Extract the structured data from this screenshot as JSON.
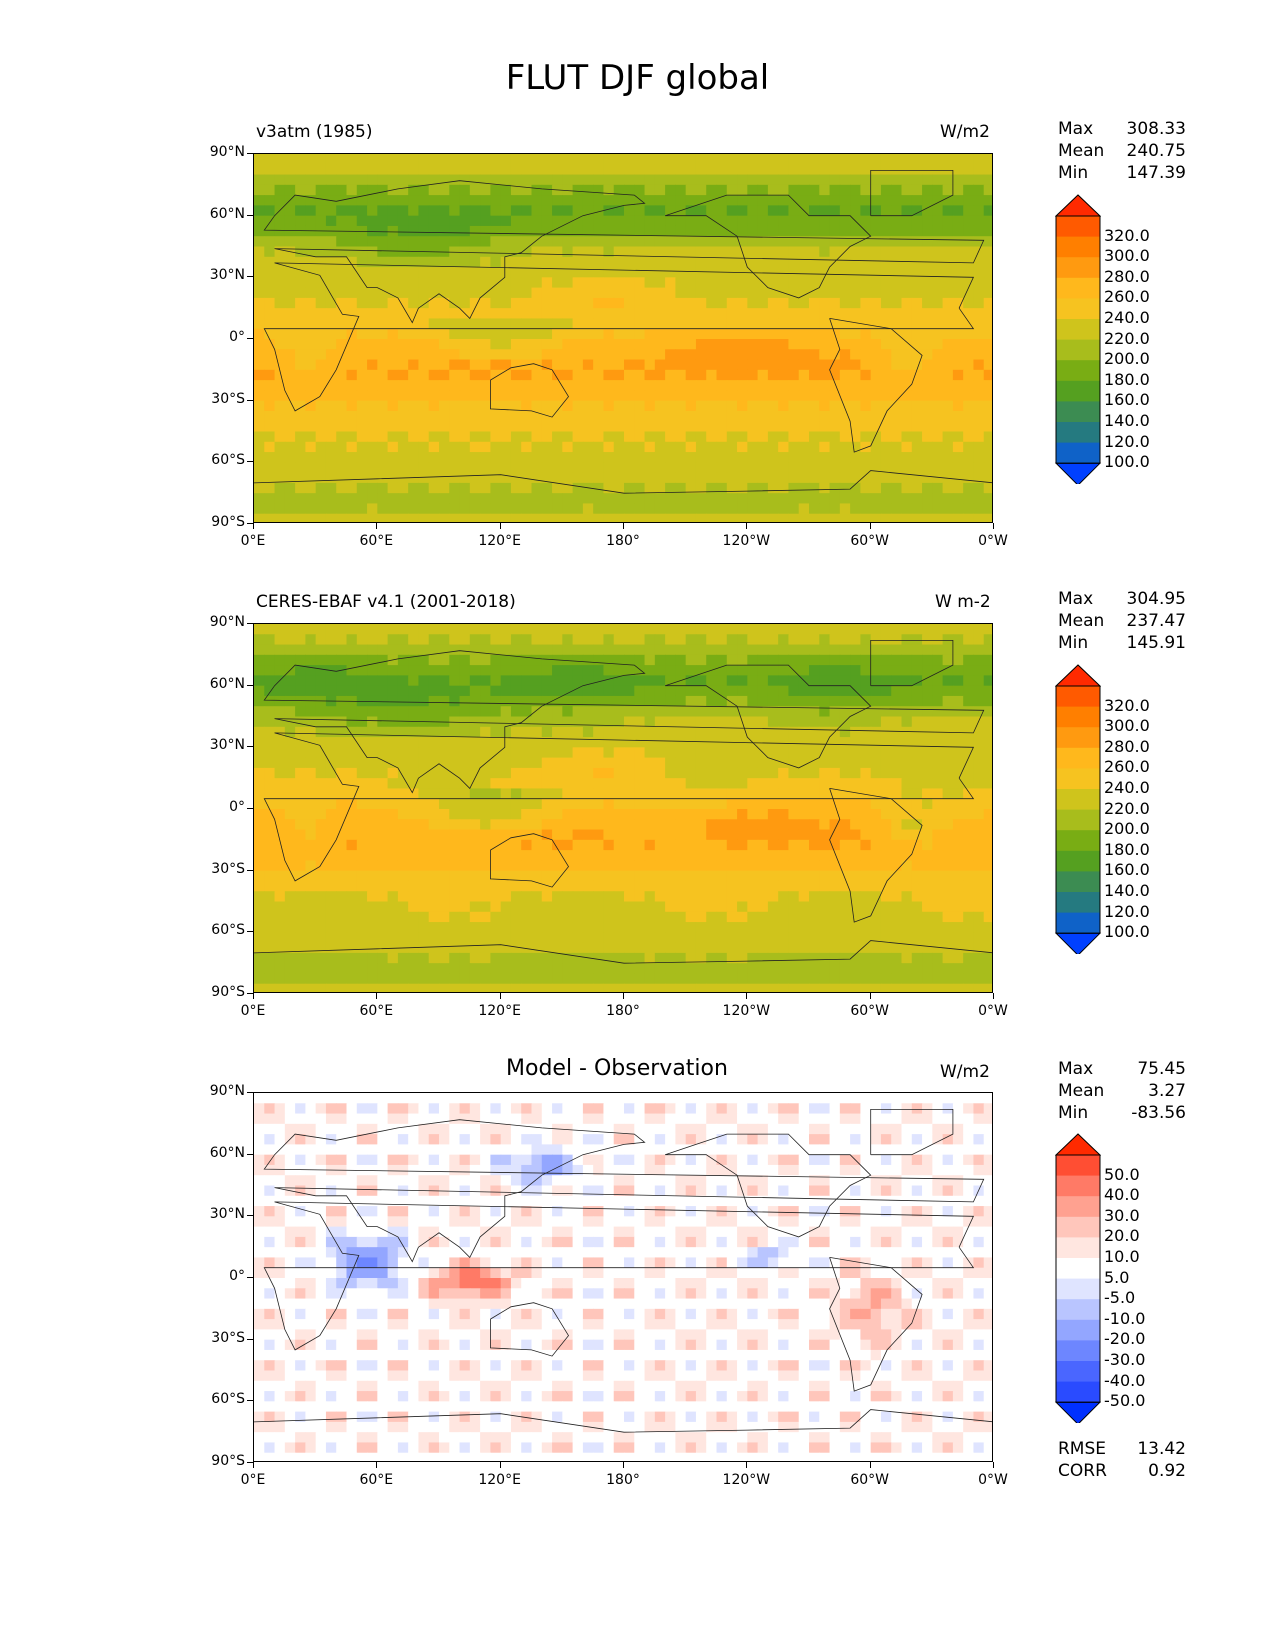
{
  "figure": {
    "title": "FLUT DJF global"
  },
  "axes": {
    "lat_labels": [
      "90°N",
      "60°N",
      "30°N",
      "0°",
      "30°S",
      "60°S",
      "90°S"
    ],
    "lon_labels": [
      "0°E",
      "60°E",
      "120°E",
      "180°",
      "120°W",
      "60°W",
      "0°W"
    ]
  },
  "panels": [
    {
      "title": "v3atm (1985)",
      "units": "W/m2",
      "stats": [
        {
          "label": "Max",
          "value": "308.33"
        },
        {
          "label": "Mean",
          "value": "240.75"
        },
        {
          "label": "Min",
          "value": "147.39"
        }
      ],
      "colorbar": {
        "ticks": [
          "320.0",
          "300.0",
          "280.0",
          "260.0",
          "240.0",
          "220.0",
          "200.0",
          "180.0",
          "160.0",
          "140.0",
          "120.0",
          "100.0"
        ],
        "colors": [
          "#ff2a00",
          "#ff5a00",
          "#ff7f00",
          "#ff9a10",
          "#ffb81c",
          "#f6c320",
          "#cfc41c",
          "#a8bd1c",
          "#79ad14",
          "#55a020",
          "#3c8c52",
          "#257a80",
          "#0f62c8",
          "#0050ff"
        ],
        "extend_top": "#ff2a00",
        "extend_bottom": "#0040ff"
      },
      "field": "model"
    },
    {
      "title": "CERES-EBAF v4.1 (2001-2018)",
      "units": "W m-2",
      "stats": [
        {
          "label": "Max",
          "value": "304.95"
        },
        {
          "label": "Mean",
          "value": "237.47"
        },
        {
          "label": "Min",
          "value": "145.91"
        }
      ],
      "colorbar": {
        "ticks": [
          "320.0",
          "300.0",
          "280.0",
          "260.0",
          "240.0",
          "220.0",
          "200.0",
          "180.0",
          "160.0",
          "140.0",
          "120.0",
          "100.0"
        ],
        "colors": [
          "#ff2a00",
          "#ff5a00",
          "#ff7f00",
          "#ff9a10",
          "#ffb81c",
          "#f6c320",
          "#cfc41c",
          "#a8bd1c",
          "#79ad14",
          "#55a020",
          "#3c8c52",
          "#257a80",
          "#0f62c8",
          "#0050ff"
        ],
        "extend_top": "#ff2a00",
        "extend_bottom": "#0040ff"
      },
      "field": "obs"
    },
    {
      "title": "Model - Observation",
      "units": "W/m2",
      "stats": [
        {
          "label": "Max",
          "value": "75.45"
        },
        {
          "label": "Mean",
          "value": "3.27"
        },
        {
          "label": "Min",
          "value": "-83.56"
        }
      ],
      "colorbar": {
        "ticks": [
          "50.0",
          "40.0",
          "30.0",
          "20.0",
          "10.0",
          "5.0",
          "-5.0",
          "-10.0",
          "-20.0",
          "-30.0",
          "-40.0",
          "-50.0"
        ],
        "colors": [
          "#ff2a00",
          "#ff4e33",
          "#ff7a66",
          "#ffa190",
          "#ffc6bb",
          "#ffe6e0",
          "#ffffff",
          "#dfe4ff",
          "#b9c5ff",
          "#93a6ff",
          "#6d86ff",
          "#4a66ff",
          "#2a4bff",
          "#0f33ff"
        ],
        "extend_top": "#ff2a00",
        "extend_bottom": "#0030ff"
      },
      "field": "diff",
      "extra_stats": [
        {
          "label": "RMSE",
          "value": "13.42"
        },
        {
          "label": "CORR",
          "value": "0.92"
        }
      ]
    }
  ]
}
